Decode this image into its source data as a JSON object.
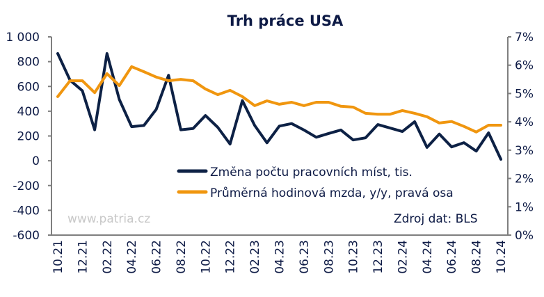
{
  "chart_data": {
    "type": "line",
    "title": "Trh práce USA",
    "x_tick_labels": [
      "10.21",
      "12.21",
      "02.22",
      "04.22",
      "06.22",
      "08.22",
      "10.22",
      "12.22",
      "02.23",
      "04.23",
      "06.23",
      "08.23",
      "10.23",
      "12.23",
      "02.24",
      "04.24",
      "06.24",
      "08.24",
      "10.24"
    ],
    "point_count": 37,
    "left_axis": {
      "ylim": [
        -600,
        1000
      ],
      "ticks": [
        "-600",
        "-400",
        "-200",
        "0",
        "200",
        "400",
        "600",
        "800",
        "1 000"
      ],
      "tick_values": [
        -600,
        -400,
        -200,
        0,
        200,
        400,
        600,
        800,
        1000
      ]
    },
    "right_axis": {
      "ylim": [
        0,
        7
      ],
      "ticks": [
        "0%",
        "1%",
        "2%",
        "3%",
        "4%",
        "5%",
        "6%",
        "7%"
      ],
      "tick_values": [
        0,
        1,
        2,
        3,
        4,
        5,
        6,
        7
      ]
    },
    "series": [
      {
        "name": "Změna počtu pracovních míst, tis.",
        "axis": "left",
        "color": "#0d2145",
        "values": [
          865,
          650,
          565,
          250,
          865,
          495,
          275,
          285,
          415,
          690,
          250,
          260,
          365,
          270,
          135,
          485,
          285,
          145,
          280,
          300,
          248,
          190,
          220,
          248,
          168,
          185,
          292,
          264,
          236,
          315,
          108,
          216,
          112,
          146,
          78,
          225,
          12
        ]
      },
      {
        "name": "Průměrná hodinová mzda, y/y, pravá osa",
        "axis": "right",
        "color": "#f0960f",
        "values": [
          4.89,
          5.45,
          5.45,
          5.03,
          5.7,
          5.28,
          5.95,
          5.77,
          5.58,
          5.45,
          5.5,
          5.45,
          5.16,
          4.96,
          5.11,
          4.89,
          4.57,
          4.74,
          4.62,
          4.69,
          4.57,
          4.69,
          4.69,
          4.55,
          4.52,
          4.3,
          4.27,
          4.27,
          4.4,
          4.3,
          4.18,
          3.96,
          4.01,
          3.84,
          3.64,
          3.88,
          3.88
        ]
      }
    ],
    "watermark": "www.patria.cz",
    "source": "Zdroj dat: BLS",
    "legend_position": "center-right inside plot"
  }
}
